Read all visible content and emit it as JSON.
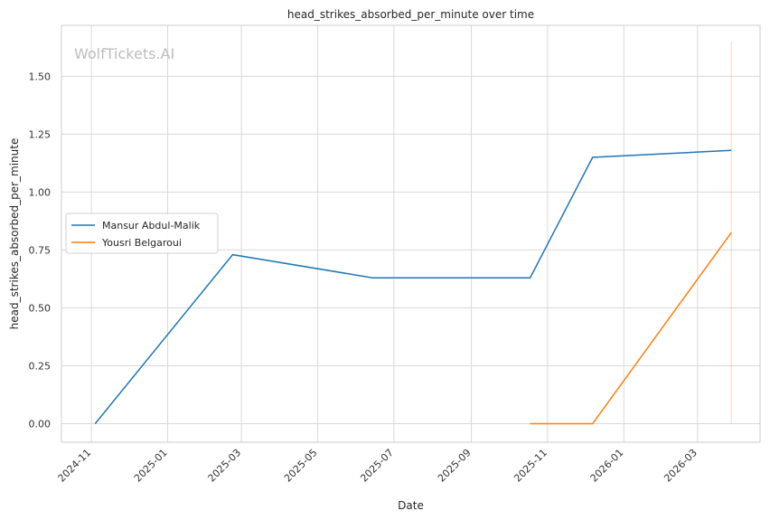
{
  "chart_data": {
    "type": "line",
    "title": "head_strikes_absorbed_per_minute over time",
    "xlabel": "Date",
    "ylabel": "head_strikes_absorbed_per_minute",
    "watermark": "WolfTickets.AI",
    "grid": true,
    "legend_position": "center-left",
    "xlim": [
      "2024-10-08",
      "2026-04-20"
    ],
    "ylim": [
      -0.08,
      1.72
    ],
    "x_ticks": [
      "2024-11-01",
      "2025-01-01",
      "2025-03-01",
      "2025-05-01",
      "2025-07-01",
      "2025-09-01",
      "2025-11-01",
      "2026-01-01",
      "2026-03-01"
    ],
    "x_tick_labels": [
      "2024-11",
      "2025-01",
      "2025-03",
      "2025-05",
      "2025-07",
      "2025-09",
      "2025-11",
      "2026-01",
      "2026-03"
    ],
    "y_ticks": [
      0.0,
      0.25,
      0.5,
      0.75,
      1.0,
      1.25,
      1.5
    ],
    "y_tick_labels": [
      "0.00",
      "0.25",
      "0.50",
      "0.75",
      "1.00",
      "1.25",
      "1.50"
    ],
    "series": [
      {
        "name": "Mansur Abdul-Malik",
        "color": "#1f77b4",
        "x": [
          "2024-11-04",
          "2025-02-22",
          "2025-06-14",
          "2025-10-18",
          "2025-12-07",
          "2026-03-28"
        ],
        "y": [
          0.0,
          0.73,
          0.63,
          0.63,
          1.15,
          1.18
        ]
      },
      {
        "name": "Yousri Belgaroui",
        "color": "#ff7f0e",
        "x": [
          "2025-10-18",
          "2025-12-07",
          "2026-03-28"
        ],
        "y": [
          0.0,
          0.0,
          0.825
        ]
      }
    ],
    "vertical_line": {
      "x": "2026-03-28",
      "y_range": [
        0.0,
        1.65
      ],
      "color": "#ff7f0e"
    }
  }
}
